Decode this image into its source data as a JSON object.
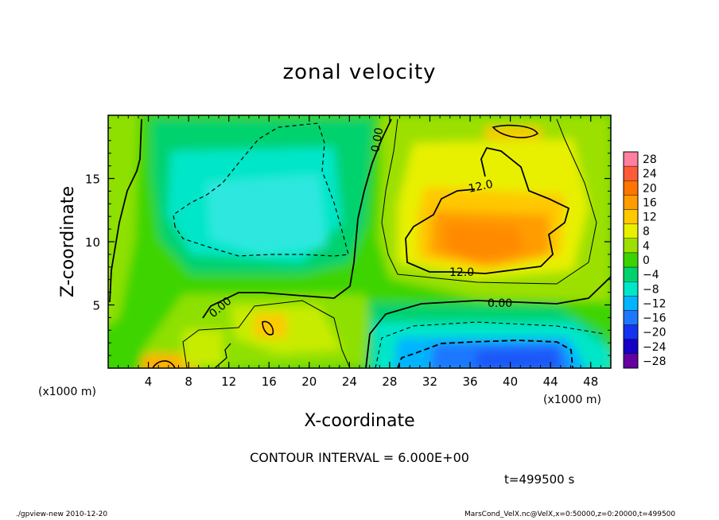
{
  "chart_data": {
    "type": "heatmap",
    "title": "zonal velocity",
    "xlabel": "X-coordinate",
    "ylabel": "Z-coordinate",
    "x_unit": "(x1000 m)",
    "xlim": [
      0,
      50
    ],
    "ylim": [
      0,
      20
    ],
    "x_ticks": [
      4,
      8,
      12,
      16,
      20,
      24,
      28,
      32,
      36,
      40,
      44,
      48
    ],
    "y_ticks": [
      5,
      10,
      15
    ],
    "colorbar": {
      "levels": [
        28,
        24,
        20,
        16,
        12,
        8,
        4,
        0,
        -4,
        -8,
        -12,
        -16,
        -20,
        -24,
        -28
      ],
      "colors": [
        "#ff7f9f",
        "#ff5a3a",
        "#ff7400",
        "#ff9c00",
        "#ffc800",
        "#e8f000",
        "#9ce000",
        "#3cd400",
        "#00d26e",
        "#00e6c8",
        "#00b4ff",
        "#1e78ff",
        "#1432f0",
        "#1400c8",
        "#6400a0"
      ]
    },
    "contour_interval": "CONTOUR INTERVAL = 6.000E+00",
    "contour_labels": [
      "0.00",
      "0.00",
      "0.00",
      "12.0",
      "12.0"
    ],
    "time": "t=499500 s",
    "footer_left": "./gpview-new  2010-12-20",
    "footer_right": "MarsCond_VelX.nc@VelX,x=0:50000,z=0:20000,t=499500"
  }
}
